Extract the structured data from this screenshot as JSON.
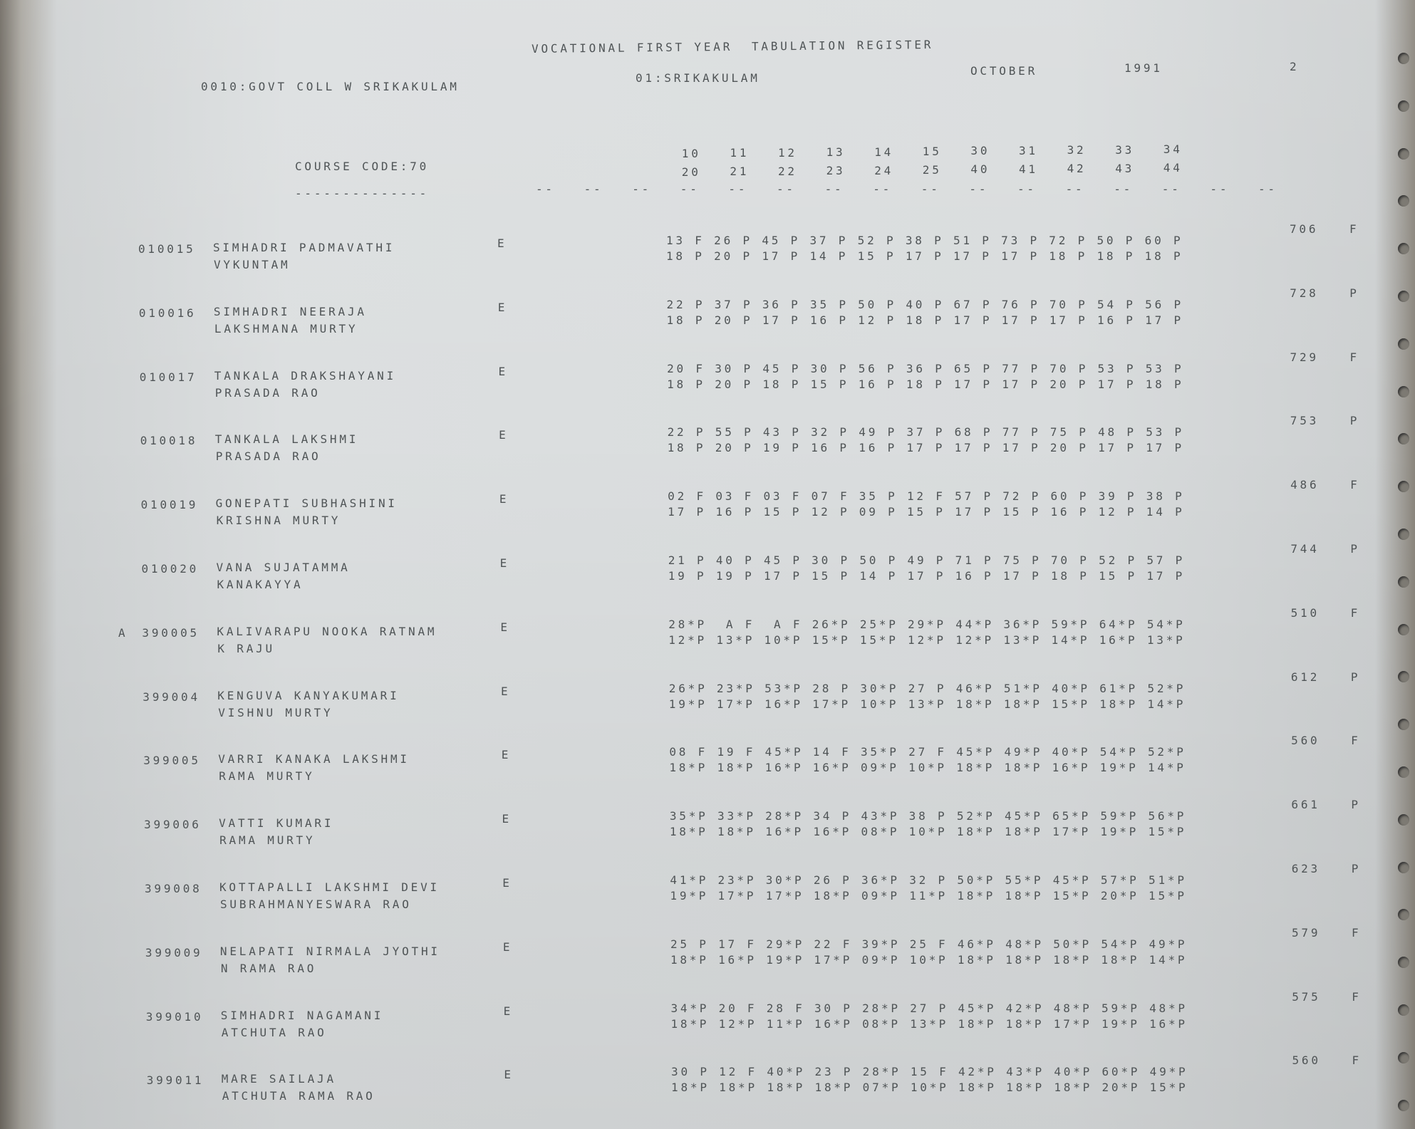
{
  "header": {
    "title": "VOCATIONAL FIRST YEAR  TABULATION REGISTER",
    "college": "0010:GOVT COLL W SRIKAKULAM",
    "district": "01:SRIKAKULAM",
    "month": "OCTOBER",
    "year": "1991",
    "page": "2",
    "course": "COURSE CODE:70",
    "course_underline": "--------------"
  },
  "columns": {
    "top": [
      "10",
      "11",
      "12",
      "13",
      "14",
      "15",
      "30",
      "31",
      "32",
      "33",
      "34"
    ],
    "bottom": [
      "20",
      "21",
      "22",
      "23",
      "24",
      "25",
      "40",
      "41",
      "42",
      "43",
      "44"
    ],
    "dashes": [
      "--",
      "--",
      "--",
      "--",
      "--",
      "--",
      "--",
      "--",
      "--",
      "--",
      "--",
      "--",
      "--",
      "--",
      "--",
      "--"
    ]
  },
  "records": [
    {
      "id": "010015",
      "name": "SIMHADRI PADMAVATHI",
      "name2": "VYKUNTAM",
      "medium": "E",
      "marks1": "13 F 26 P 45 P 37 P 52 P 38 P 51 P 73 P 72 P 50 P 60 P",
      "marks2": "18 P 20 P 17 P 14 P 15 P 17 P 17 P 17 P 18 P 18 P 18 P",
      "total": "706",
      "result": "F"
    },
    {
      "id": "010016",
      "name": "SIMHADRI NEERAJA",
      "name2": "LAKSHMANA MURTY",
      "medium": "E",
      "marks1": "22 P 37 P 36 P 35 P 50 P 40 P 67 P 76 P 70 P 54 P 56 P",
      "marks2": "18 P 20 P 17 P 16 P 12 P 18 P 17 P 17 P 17 P 16 P 17 P",
      "total": "728",
      "result": "P"
    },
    {
      "id": "010017",
      "name": "TANKALA DRAKSHAYANI",
      "name2": "PRASADA RAO",
      "medium": "E",
      "marks1": "20 F 30 P 45 P 30 P 56 P 36 P 65 P 77 P 70 P 53 P 53 P",
      "marks2": "18 P 20 P 18 P 15 P 16 P 18 P 17 P 17 P 20 P 17 P 18 P",
      "total": "729",
      "result": "F"
    },
    {
      "id": "010018",
      "name": "TANKALA LAKSHMI",
      "name2": "PRASADA RAO",
      "medium": "E",
      "marks1": "22 P 55 P 43 P 32 P 49 P 37 P 68 P 77 P 75 P 48 P 53 P",
      "marks2": "18 P 20 P 19 P 16 P 16 P 17 P 17 P 17 P 20 P 17 P 17 P",
      "total": "753",
      "result": "P"
    },
    {
      "id": "010019",
      "name": "GONEPATI SUBHASHINI",
      "name2": "KRISHNA MURTY",
      "medium": "E",
      "marks1": "02 F 03 F 03 F 07 F 35 P 12 F 57 P 72 P 60 P 39 P 38 P",
      "marks2": "17 P 16 P 15 P 12 P 09 P 15 P 17 P 15 P 16 P 12 P 14 P",
      "total": "486",
      "result": "F"
    },
    {
      "id": "010020",
      "name": "VANA SUJATAMMA",
      "name2": "KANAKAYYA",
      "medium": "E",
      "marks1": "21 P 40 P 45 P 30 P 50 P 49 P 71 P 75 P 70 P 52 P 57 P",
      "marks2": "19 P 19 P 17 P 15 P 14 P 17 P 16 P 17 P 18 P 15 P 17 P",
      "total": "744",
      "result": "P"
    },
    {
      "flag": "A",
      "id": "390005",
      "name": "KALIVARAPU NOOKA RATNAM",
      "name2": "K RAJU",
      "medium": "E",
      "marks1": "28*P  A F  A F 26*P 25*P 29*P 44*P 36*P 59*P 64*P 54*P",
      "marks2": "12*P 13*P 10*P 15*P 15*P 12*P 12*P 13*P 14*P 16*P 13*P",
      "total": "510",
      "result": "F"
    },
    {
      "id": "399004",
      "name": "KENGUVA KANYAKUMARI",
      "name2": "VISHNU MURTY",
      "medium": "E",
      "marks1": "26*P 23*P 53*P 28 P 30*P 27 P 46*P 51*P 40*P 61*P 52*P",
      "marks2": "19*P 17*P 16*P 17*P 10*P 13*P 18*P 18*P 15*P 18*P 14*P",
      "total": "612",
      "result": "P"
    },
    {
      "id": "399005",
      "name": "VARRI KANAKA LAKSHMI",
      "name2": "RAMA MURTY",
      "medium": "E",
      "marks1": "08 F 19 F 45*P 14 F 35*P 27 F 45*P 49*P 40*P 54*P 52*P",
      "marks2": "18*P 18*P 16*P 16*P 09*P 10*P 18*P 18*P 16*P 19*P 14*P",
      "total": "560",
      "result": "F"
    },
    {
      "id": "399006",
      "name": "VATTI KUMARI",
      "name2": "RAMA MURTY",
      "medium": "E",
      "marks1": "35*P 33*P 28*P 34 P 43*P 38 P 52*P 45*P 65*P 59*P 56*P",
      "marks2": "18*P 18*P 16*P 16*P 08*P 10*P 18*P 18*P 17*P 19*P 15*P",
      "total": "661",
      "result": "P"
    },
    {
      "id": "399008",
      "name": "KOTTAPALLI LAKSHMI DEVI",
      "name2": "SUBRAHMANYESWARA RAO",
      "medium": "E",
      "marks1": "41*P 23*P 30*P 26 P 36*P 32 P 50*P 55*P 45*P 57*P 51*P",
      "marks2": "19*P 17*P 17*P 18*P 09*P 11*P 18*P 18*P 15*P 20*P 15*P",
      "total": "623",
      "result": "P"
    },
    {
      "id": "399009",
      "name": "NELAPATI NIRMALA JYOTHI",
      "name2": "N RAMA RAO",
      "medium": "E",
      "marks1": "25 P 17 F 29*P 22 F 39*P 25 F 46*P 48*P 50*P 54*P 49*P",
      "marks2": "18*P 16*P 19*P 17*P 09*P 10*P 18*P 18*P 18*P 18*P 14*P",
      "total": "579",
      "result": "F"
    },
    {
      "id": "399010",
      "name": "SIMHADRI NAGAMANI",
      "name2": "ATCHUTA RAO",
      "medium": "E",
      "marks1": "34*P 20 F 28 F 30 P 28*P 27 P 45*P 42*P 48*P 59*P 48*P",
      "marks2": "18*P 12*P 11*P 16*P 08*P 13*P 18*P 18*P 17*P 19*P 16*P",
      "total": "575",
      "result": "F"
    },
    {
      "id": "399011",
      "name": "MARE SAILAJA",
      "name2": "ATCHUTA RAMA RAO",
      "medium": "E",
      "marks1": "30 P 12 F 40*P 23 P 28*P 15 F 42*P 43*P 40*P 60*P 49*P",
      "marks2": "18*P 18*P 18*P 18*P 07*P 10*P 18*P 18*P 18*P 20*P 15*P",
      "total": "560",
      "result": "F"
    }
  ]
}
